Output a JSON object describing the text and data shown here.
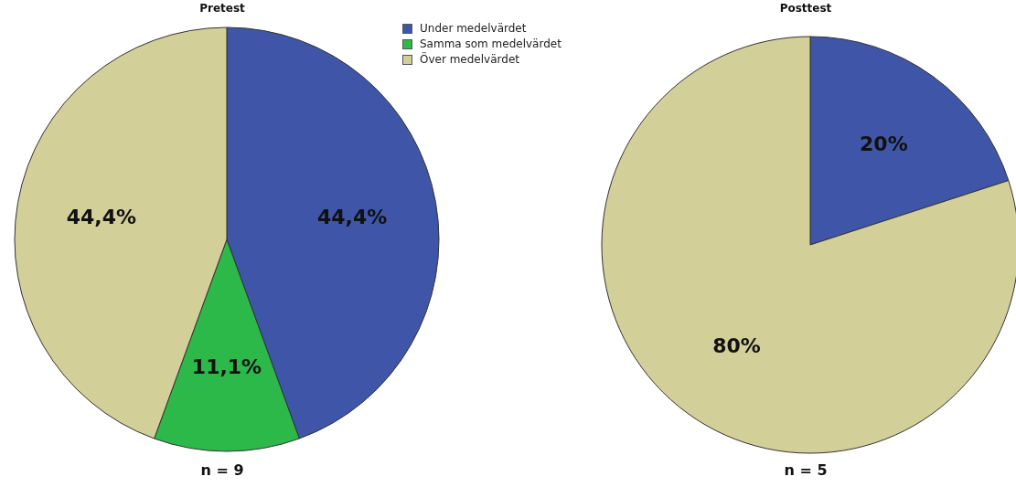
{
  "chart_data": [
    {
      "type": "pie",
      "title": "Pretest",
      "categories": [
        "Under medelvärdet",
        "Samma som medelvärdet",
        "Över medelvärdet"
      ],
      "values": [
        44.4,
        11.1,
        44.4
      ],
      "colors": [
        "#3f56a8",
        "#2db84a",
        "#d3cf98"
      ],
      "value_labels": [
        "44,4%",
        "11,1%",
        "44,4%"
      ],
      "legend": "top right",
      "annotations": [
        "n = 9"
      ]
    },
    {
      "type": "pie",
      "title": "Posttest",
      "categories": [
        null,
        null
      ],
      "values": [
        20,
        80
      ],
      "colors": [
        "#3f56a8",
        "#d3cf98"
      ],
      "value_labels": [
        "20%",
        "80%"
      ],
      "annotations": [
        "n = 5"
      ]
    }
  ]
}
